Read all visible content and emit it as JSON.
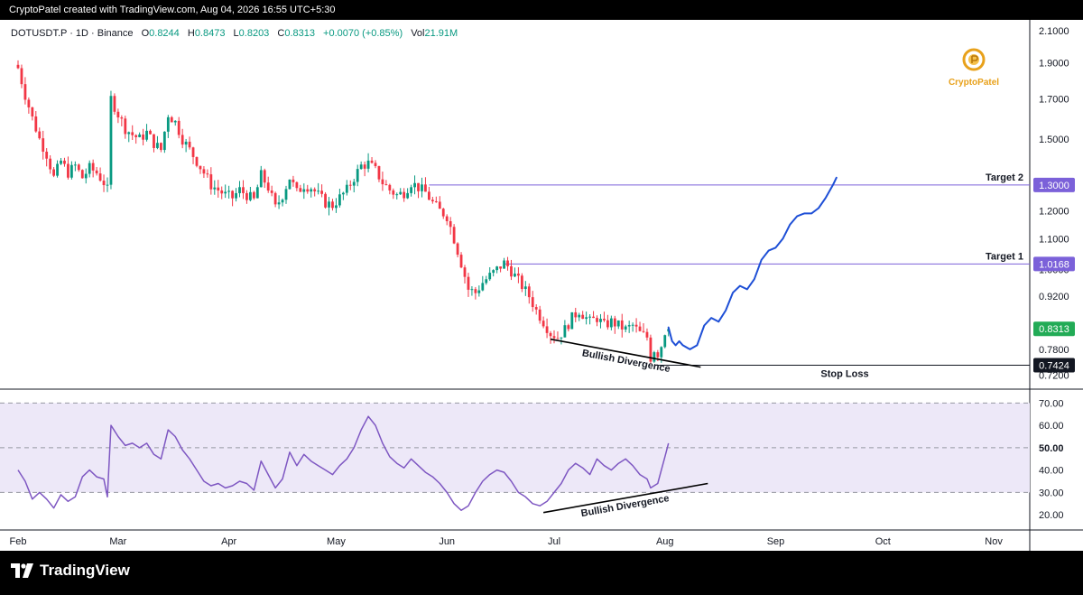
{
  "header": {
    "created_text": "CryptoPatel created with TradingView.com, Aug 04, 2026 16:55 UTC+5:30"
  },
  "legend": {
    "symbol": "DOTUSDT.P · 1D · Binance",
    "open_label": "O",
    "open": "0.8244",
    "high_label": "H",
    "high": "0.8473",
    "low_label": "L",
    "low": "0.8203",
    "close_label": "C",
    "close": "0.8313",
    "change": "+0.0070 (+0.85%)",
    "vol_label": "Vol",
    "vol": "21.91M"
  },
  "brand": {
    "name": "CryptoPatel"
  },
  "footer": {
    "logo_text": "TradingView"
  },
  "colors": {
    "up": "#089981",
    "down": "#f23645",
    "rsi": "#7e57c2",
    "projection": "#1e4fd6",
    "level": "#7b61d9",
    "price_tag": "#22ab56",
    "rsi_band": "#ede8f8"
  },
  "chart_data": [
    {
      "type": "candlestick",
      "symbol": "DOTUSDT.P",
      "interval": "1D",
      "exchange": "Binance",
      "xaxis": {
        "tick_labels": [
          "Feb",
          "Mar",
          "Apr",
          "May",
          "Jun",
          "Jul",
          "Aug",
          "Sep",
          "Oct",
          "Nov"
        ],
        "tick_days": [
          0,
          28,
          59,
          89,
          120,
          150,
          181,
          212,
          242,
          273
        ],
        "start_date": "2026-02-01"
      },
      "yaxis": {
        "scale": "log",
        "tick_labels": [
          "2.1000",
          "1.9000",
          "1.7000",
          "1.5000",
          "1.3000",
          "1.2000",
          "1.1000",
          "1.0000",
          "0.9200",
          "0.7800",
          "0.7200"
        ],
        "ticks": [
          2.1,
          1.9,
          1.7,
          1.5,
          1.3,
          1.2,
          1.1,
          1.0,
          0.92,
          0.78,
          0.72
        ],
        "range": [
          0.695,
          2.16
        ]
      },
      "price_path": [
        [
          0,
          1.87
        ],
        [
          2,
          1.72
        ],
        [
          4,
          1.6
        ],
        [
          6,
          1.5
        ],
        [
          8,
          1.43
        ],
        [
          9,
          1.38
        ],
        [
          10,
          1.33
        ],
        [
          12,
          1.4
        ],
        [
          14,
          1.35
        ],
        [
          16,
          1.38
        ],
        [
          18,
          1.33
        ],
        [
          20,
          1.37
        ],
        [
          22,
          1.35
        ],
        [
          24,
          1.31
        ],
        [
          25,
          1.28
        ],
        [
          26,
          1.7
        ],
        [
          28,
          1.62
        ],
        [
          30,
          1.55
        ],
        [
          32,
          1.52
        ],
        [
          34,
          1.5
        ],
        [
          36,
          1.53
        ],
        [
          38,
          1.48
        ],
        [
          40,
          1.45
        ],
        [
          42,
          1.62
        ],
        [
          44,
          1.58
        ],
        [
          46,
          1.5
        ],
        [
          48,
          1.45
        ],
        [
          50,
          1.4
        ],
        [
          52,
          1.35
        ],
        [
          54,
          1.3
        ],
        [
          56,
          1.28
        ],
        [
          58,
          1.26
        ],
        [
          60,
          1.25
        ],
        [
          62,
          1.28
        ],
        [
          64,
          1.26
        ],
        [
          66,
          1.24
        ],
        [
          68,
          1.34
        ],
        [
          70,
          1.29
        ],
        [
          72,
          1.21
        ],
        [
          74,
          1.26
        ],
        [
          76,
          1.33
        ],
        [
          78,
          1.27
        ],
        [
          80,
          1.3
        ],
        [
          82,
          1.29
        ],
        [
          84,
          1.26
        ],
        [
          86,
          1.23
        ],
        [
          88,
          1.22
        ],
        [
          90,
          1.25
        ],
        [
          92,
          1.28
        ],
        [
          94,
          1.33
        ],
        [
          96,
          1.38
        ],
        [
          98,
          1.39
        ],
        [
          100,
          1.36
        ],
        [
          102,
          1.31
        ],
        [
          104,
          1.28
        ],
        [
          106,
          1.26
        ],
        [
          108,
          1.27
        ],
        [
          110,
          1.31
        ],
        [
          112,
          1.29
        ],
        [
          114,
          1.27
        ],
        [
          116,
          1.23
        ],
        [
          118,
          1.2
        ],
        [
          120,
          1.18
        ],
        [
          122,
          1.1
        ],
        [
          124,
          1.02
        ],
        [
          126,
          0.94
        ],
        [
          128,
          0.93
        ],
        [
          130,
          0.96
        ],
        [
          132,
          0.98
        ],
        [
          134,
          1.0
        ],
        [
          136,
          1.02
        ],
        [
          137,
          1.01
        ],
        [
          139,
          0.98
        ],
        [
          141,
          0.95
        ],
        [
          143,
          0.92
        ],
        [
          145,
          0.88
        ],
        [
          147,
          0.85
        ],
        [
          149,
          0.82
        ],
        [
          151,
          0.81
        ],
        [
          153,
          0.83
        ],
        [
          155,
          0.86
        ],
        [
          157,
          0.88
        ],
        [
          158,
          0.87
        ],
        [
          160,
          0.85
        ],
        [
          162,
          0.86
        ],
        [
          164,
          0.84
        ],
        [
          166,
          0.85
        ],
        [
          168,
          0.84
        ],
        [
          170,
          0.83
        ],
        [
          172,
          0.84
        ],
        [
          174,
          0.82
        ],
        [
          176,
          0.81
        ],
        [
          177,
          0.76
        ],
        [
          178,
          0.78
        ],
        [
          179,
          0.77
        ],
        [
          180,
          0.79
        ],
        [
          181,
          0.8244
        ],
        [
          182,
          0.8313
        ]
      ],
      "projection_path": [
        [
          182,
          0.835
        ],
        [
          183,
          0.8
        ],
        [
          184,
          0.79
        ],
        [
          185,
          0.8
        ],
        [
          186,
          0.79
        ],
        [
          188,
          0.78
        ],
        [
          190,
          0.79
        ],
        [
          192,
          0.84
        ],
        [
          194,
          0.86
        ],
        [
          196,
          0.85
        ],
        [
          198,
          0.88
        ],
        [
          200,
          0.93
        ],
        [
          202,
          0.95
        ],
        [
          204,
          0.94
        ],
        [
          206,
          0.97
        ],
        [
          208,
          1.03
        ],
        [
          210,
          1.06
        ],
        [
          212,
          1.07
        ],
        [
          214,
          1.1
        ],
        [
          216,
          1.15
        ],
        [
          218,
          1.18
        ],
        [
          220,
          1.19
        ],
        [
          222,
          1.19
        ],
        [
          224,
          1.21
        ],
        [
          226,
          1.25
        ],
        [
          228,
          1.3
        ],
        [
          229,
          1.33
        ]
      ],
      "levels": [
        {
          "label": "Target 2",
          "value": 1.3,
          "tag": "1.3000",
          "from_day": 115
        },
        {
          "label": "Target 1",
          "value": 1.0168,
          "tag": "1.0168",
          "from_day": 136
        },
        {
          "label": "Stop Loss",
          "value": 0.7424,
          "tag": "0.7424",
          "from_day": 178
        }
      ],
      "last_price": {
        "value": 0.8313,
        "tag": "0.8313"
      },
      "annotations": [
        {
          "text": "Bullish Divergence",
          "line": [
            [
              149,
              0.805
            ],
            [
              191,
              0.738
            ]
          ]
        }
      ]
    },
    {
      "type": "line",
      "name": "RSI",
      "yaxis": {
        "tick_labels": [
          "70.00",
          "60.00",
          "50.00",
          "40.00",
          "30.00",
          "20.00"
        ],
        "ticks": [
          70,
          60,
          50,
          40,
          30,
          20
        ],
        "range": [
          14,
          75
        ],
        "band": [
          30,
          70
        ],
        "midline": 50
      },
      "values": [
        [
          0,
          40
        ],
        [
          2,
          35
        ],
        [
          4,
          27
        ],
        [
          6,
          30
        ],
        [
          8,
          27
        ],
        [
          10,
          23
        ],
        [
          12,
          29
        ],
        [
          14,
          26
        ],
        [
          16,
          28
        ],
        [
          18,
          37
        ],
        [
          20,
          40
        ],
        [
          22,
          37
        ],
        [
          24,
          36
        ],
        [
          25,
          28
        ],
        [
          26,
          60
        ],
        [
          28,
          55
        ],
        [
          30,
          51
        ],
        [
          32,
          52
        ],
        [
          34,
          50
        ],
        [
          36,
          52
        ],
        [
          38,
          47
        ],
        [
          40,
          45
        ],
        [
          42,
          58
        ],
        [
          44,
          55
        ],
        [
          46,
          49
        ],
        [
          48,
          45
        ],
        [
          50,
          40
        ],
        [
          52,
          35
        ],
        [
          54,
          33
        ],
        [
          56,
          34
        ],
        [
          58,
          32
        ],
        [
          60,
          33
        ],
        [
          62,
          35
        ],
        [
          64,
          34
        ],
        [
          66,
          31
        ],
        [
          68,
          44
        ],
        [
          70,
          38
        ],
        [
          72,
          32
        ],
        [
          74,
          36
        ],
        [
          76,
          48
        ],
        [
          78,
          42
        ],
        [
          80,
          47
        ],
        [
          82,
          44
        ],
        [
          84,
          42
        ],
        [
          86,
          40
        ],
        [
          88,
          38
        ],
        [
          90,
          42
        ],
        [
          92,
          45
        ],
        [
          94,
          50
        ],
        [
          96,
          58
        ],
        [
          98,
          64
        ],
        [
          100,
          60
        ],
        [
          102,
          52
        ],
        [
          104,
          46
        ],
        [
          106,
          43
        ],
        [
          108,
          41
        ],
        [
          110,
          45
        ],
        [
          112,
          42
        ],
        [
          114,
          39
        ],
        [
          116,
          37
        ],
        [
          118,
          34
        ],
        [
          120,
          30
        ],
        [
          122,
          25
        ],
        [
          124,
          22
        ],
        [
          126,
          24
        ],
        [
          128,
          30
        ],
        [
          130,
          35
        ],
        [
          132,
          38
        ],
        [
          134,
          40
        ],
        [
          136,
          39
        ],
        [
          138,
          35
        ],
        [
          140,
          30
        ],
        [
          142,
          28
        ],
        [
          144,
          25
        ],
        [
          146,
          24
        ],
        [
          148,
          26
        ],
        [
          150,
          30
        ],
        [
          152,
          34
        ],
        [
          154,
          40
        ],
        [
          156,
          43
        ],
        [
          158,
          41
        ],
        [
          160,
          38
        ],
        [
          162,
          45
        ],
        [
          164,
          42
        ],
        [
          166,
          40
        ],
        [
          168,
          43
        ],
        [
          170,
          45
        ],
        [
          172,
          42
        ],
        [
          174,
          38
        ],
        [
          176,
          36
        ],
        [
          177,
          32
        ],
        [
          179,
          34
        ],
        [
          180,
          40
        ],
        [
          181,
          46
        ],
        [
          182,
          52
        ]
      ],
      "annotations": [
        {
          "text": "Bullish Divergence",
          "line": [
            [
              147,
              21
            ],
            [
              193,
              34
            ]
          ]
        }
      ]
    }
  ]
}
